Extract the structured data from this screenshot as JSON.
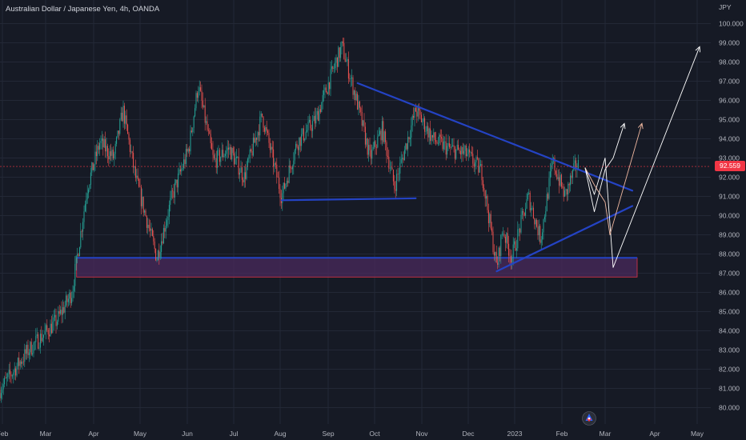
{
  "header": {
    "title": "Australian Dollar / Japanese Yen, 4h, OANDA"
  },
  "axis": {
    "currency": "JPY",
    "last_price": "92.559",
    "price_ticks": [
      "100.000",
      "99.000",
      "98.000",
      "97.000",
      "96.000",
      "95.000",
      "94.000",
      "93.000",
      "92.000",
      "91.000",
      "90.000",
      "89.000",
      "88.000",
      "87.000",
      "86.000",
      "85.000",
      "84.000",
      "83.000",
      "82.000",
      "81.000",
      "80.000"
    ],
    "time_ticks": [
      "Feb",
      "Mar",
      "Apr",
      "May",
      "Jun",
      "Jul",
      "Aug",
      "Sep",
      "Oct",
      "Nov",
      "Dec",
      "2023",
      "Feb",
      "Mar",
      "Apr",
      "May"
    ]
  },
  "colors": {
    "background": "#161a25",
    "bull": "#26a69a",
    "bear": "#ef5350",
    "trendline": "#2443c4",
    "zone_fill": "#4a2a5c",
    "zone_border": "#e0334a",
    "last_price": "#f23645",
    "projection_white": "#ffffff",
    "projection_peach": "#f0b8a0"
  },
  "chart_data": {
    "type": "candlestick",
    "symbol": "Australian Dollar / Japanese Yen",
    "interval": "4h",
    "source": "OANDA",
    "y_unit": "JPY",
    "ylim": [
      79.6,
      100.8
    ],
    "last_price": 92.559,
    "price_path": [
      {
        "date": "2022-01-31",
        "price": 81.0
      },
      {
        "date": "2022-02-18",
        "price": 83.0
      },
      {
        "date": "2022-03-08",
        "price": 84.5
      },
      {
        "date": "2022-03-18",
        "price": 86.0
      },
      {
        "date": "2022-03-28",
        "price": 91.5
      },
      {
        "date": "2022-04-05",
        "price": 93.8
      },
      {
        "date": "2022-04-14",
        "price": 93.0
      },
      {
        "date": "2022-04-20",
        "price": 95.5
      },
      {
        "date": "2022-04-28",
        "price": 92.0
      },
      {
        "date": "2022-05-12",
        "price": 87.8
      },
      {
        "date": "2022-05-22",
        "price": 91.0
      },
      {
        "date": "2022-06-02",
        "price": 93.5
      },
      {
        "date": "2022-06-08",
        "price": 96.8
      },
      {
        "date": "2022-06-18",
        "price": 92.8
      },
      {
        "date": "2022-06-28",
        "price": 93.5
      },
      {
        "date": "2022-07-08",
        "price": 92.0
      },
      {
        "date": "2022-07-20",
        "price": 95.2
      },
      {
        "date": "2022-08-02",
        "price": 91.0
      },
      {
        "date": "2022-08-12",
        "price": 93.8
      },
      {
        "date": "2022-08-24",
        "price": 95.0
      },
      {
        "date": "2022-09-06",
        "price": 98.0
      },
      {
        "date": "2022-09-10",
        "price": 98.8
      },
      {
        "date": "2022-09-20",
        "price": 95.8
      },
      {
        "date": "2022-09-28",
        "price": 93.0
      },
      {
        "date": "2022-10-06",
        "price": 94.5
      },
      {
        "date": "2022-10-14",
        "price": 91.5
      },
      {
        "date": "2022-10-28",
        "price": 95.5
      },
      {
        "date": "2022-11-08",
        "price": 94.0
      },
      {
        "date": "2022-11-18",
        "price": 93.5
      },
      {
        "date": "2022-11-30",
        "price": 93.2
      },
      {
        "date": "2022-12-10",
        "price": 92.3
      },
      {
        "date": "2022-12-20",
        "price": 87.3
      },
      {
        "date": "2022-12-24",
        "price": 89.3
      },
      {
        "date": "2022-12-30",
        "price": 87.8
      },
      {
        "date": "2023-01-10",
        "price": 91.0
      },
      {
        "date": "2023-01-18",
        "price": 88.8
      },
      {
        "date": "2023-01-26",
        "price": 92.8
      },
      {
        "date": "2023-02-03",
        "price": 91.0
      },
      {
        "date": "2023-02-10",
        "price": 92.6
      }
    ],
    "annotations": {
      "support_zone": {
        "from_date": "2022-03-21",
        "to_date": "2023-03-21",
        "low": 86.8,
        "high": 87.8
      },
      "trendlines": [
        {
          "name": "descending resistance",
          "points": [
            {
              "date": "2022-09-20",
              "price": 96.9
            },
            {
              "date": "2023-03-18",
              "price": 91.3
            }
          ]
        },
        {
          "name": "rising support",
          "points": [
            {
              "date": "2022-12-20",
              "price": 87.1
            },
            {
              "date": "2023-03-18",
              "price": 90.5
            }
          ]
        },
        {
          "name": "horizontal support",
          "points": [
            {
              "date": "2022-08-02",
              "price": 90.8
            },
            {
              "date": "2022-10-28",
              "price": 90.9
            }
          ]
        }
      ],
      "projections": [
        {
          "color": "white",
          "points": [
            {
              "date": "2023-02-16",
              "price": 92.5
            },
            {
              "date": "2023-02-22",
              "price": 91.1
            },
            {
              "date": "2023-03-01",
              "price": 93.0
            },
            {
              "date": "2023-03-06",
              "price": 87.3
            },
            {
              "date": "2023-04-30",
              "price": 98.8
            }
          ]
        },
        {
          "color": "white",
          "points": [
            {
              "date": "2023-02-16",
              "price": 92.5
            },
            {
              "date": "2023-02-22",
              "price": 91.6
            },
            {
              "date": "2023-03-01",
              "price": 90.7
            },
            {
              "date": "2023-03-04",
              "price": 89.0
            },
            {
              "date": "2023-03-24",
              "price": 94.8
            }
          ]
        },
        {
          "color": "white",
          "points": [
            {
              "date": "2023-02-16",
              "price": 92.5
            },
            {
              "date": "2023-02-22",
              "price": 90.2
            },
            {
              "date": "2023-03-01",
              "price": 92.4
            },
            {
              "date": "2023-03-06",
              "price": 93.0
            },
            {
              "date": "2023-03-13",
              "price": 94.8
            }
          ]
        }
      ]
    }
  }
}
